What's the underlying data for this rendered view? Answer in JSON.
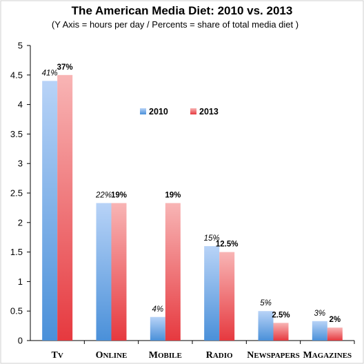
{
  "chart_data": {
    "type": "bar",
    "title": "The American Media Diet: 2010 vs. 2013",
    "subtitle": "(Y Axis = hours per day / Percents = share of total media diet )",
    "categories": [
      "TV",
      "Online",
      "Mobile",
      "Radio",
      "Newspapers",
      "Magazines"
    ],
    "series": [
      {
        "name": "2010",
        "values": [
          4.4,
          2.33,
          0.4,
          1.6,
          0.5,
          0.33
        ],
        "labels": [
          "41%",
          "22%",
          "4%",
          "15%",
          "5%",
          "3%"
        ],
        "color": "#5b9bd5"
      },
      {
        "name": "2013",
        "values": [
          4.5,
          2.33,
          2.33,
          1.5,
          0.3,
          0.22
        ],
        "labels": [
          "37%",
          "19%",
          "19%",
          "12.5%",
          "2.5%",
          "2%"
        ],
        "color": "#e8474c"
      }
    ],
    "xlabel": "",
    "ylabel": "",
    "ylim": [
      0,
      5
    ],
    "yticks": [
      "0",
      "0.5",
      "1",
      "1.5",
      "2",
      "2.5",
      "3",
      "3.5",
      "4",
      "4.5",
      "5"
    ],
    "grid": false,
    "legend_position": "top-center"
  }
}
